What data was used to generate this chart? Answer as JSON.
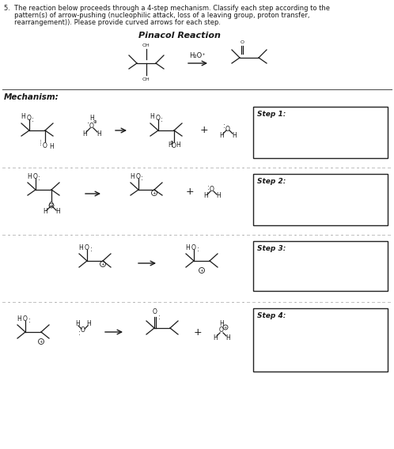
{
  "background": "#ffffff",
  "text_color": "#1a1a1a",
  "box_color": "#333333",
  "figure_width": 4.98,
  "figure_height": 5.68,
  "dpi": 100,
  "title_line1": "5.  The reaction below proceeds through a 4-step mechanism. Classify each step according to the",
  "title_line2": "     pattern(s) of arrow-pushing (nucleophilic attack, loss of a leaving group, proton transfer,",
  "title_line3": "     rearrangement)). Please provide curved arrows for each step.",
  "pinacol_title": "Pinacol Reaction",
  "mechanism_label": "Mechanism:",
  "step_labels": [
    "Step 1:",
    "Step 2:",
    "Step 3:",
    "Step 4:"
  ]
}
